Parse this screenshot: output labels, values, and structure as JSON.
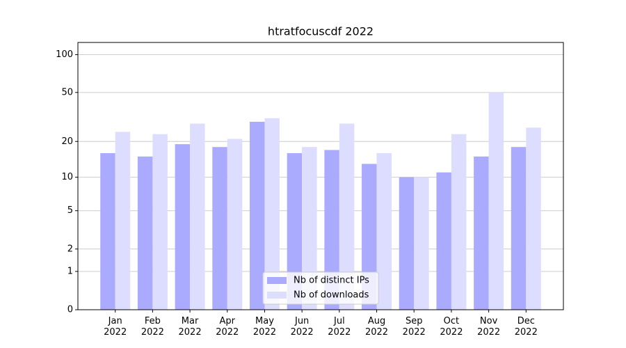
{
  "chart_data": {
    "type": "bar",
    "title": "htratfocuscdf 2022",
    "categories": [
      "Jan 2022",
      "Feb 2022",
      "Mar 2022",
      "Apr 2022",
      "May 2022",
      "Jun 2022",
      "Jul 2022",
      "Aug 2022",
      "Sep 2022",
      "Oct 2022",
      "Nov 2022",
      "Dec 2022"
    ],
    "series": [
      {
        "name": "Nb of distinct IPs",
        "color": "#aaaaff",
        "values": [
          16,
          15,
          19,
          18,
          29,
          16,
          17,
          13,
          10,
          11,
          15,
          18
        ]
      },
      {
        "name": "Nb of downloads",
        "color": "#ddddff",
        "values": [
          24,
          23,
          28,
          21,
          31,
          18,
          28,
          16,
          10,
          23,
          50,
          26
        ]
      }
    ],
    "ylim": [
      0,
      125
    ],
    "yticks": [
      0,
      1,
      2,
      5,
      10,
      20,
      50,
      100
    ],
    "yscale": "log1p",
    "grid": true,
    "legend": "lower center"
  }
}
